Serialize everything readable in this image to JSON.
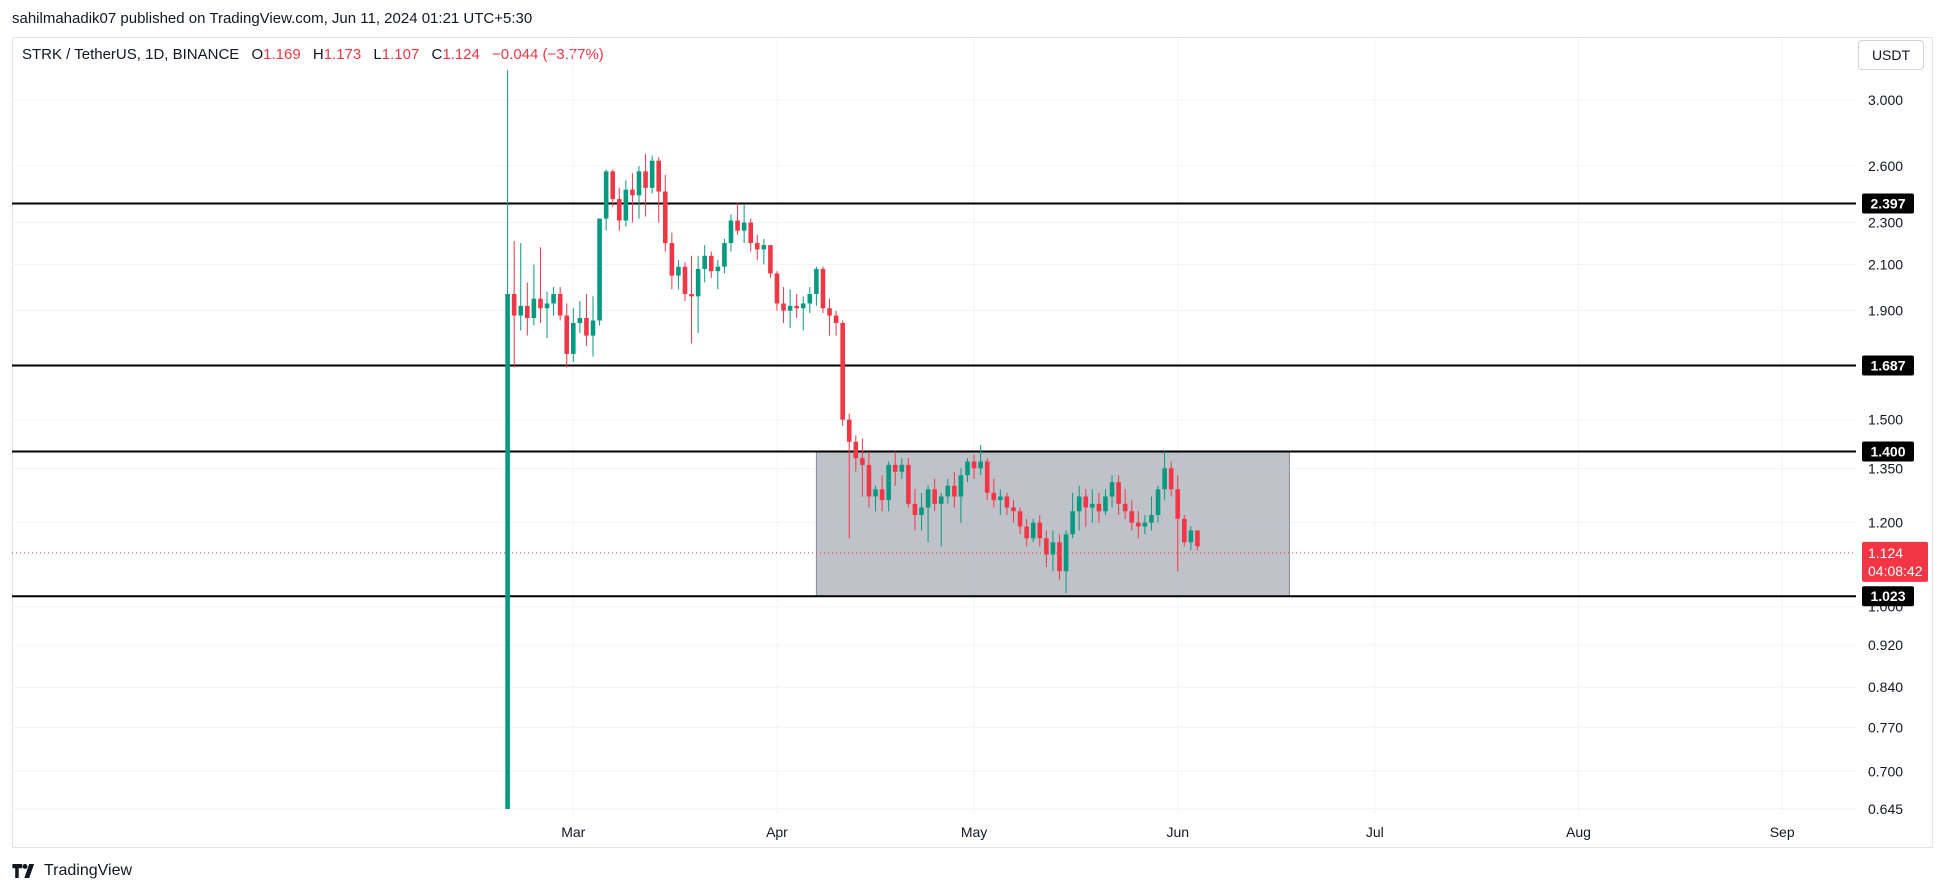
{
  "header": {
    "published": "sahilmahadik07 published on TradingView.com, Jun 11, 2024 01:21 UTC+5:30"
  },
  "legend": {
    "symbol": "STRK / TetherUS, 1D, BINANCE",
    "o_label": "O",
    "o_value": "1.169",
    "h_label": "H",
    "h_value": "1.173",
    "l_label": "L",
    "l_value": "1.107",
    "c_label": "C",
    "c_value": "1.124",
    "change": "−0.044 (−3.77%)"
  },
  "unit_button": "USDT",
  "footer": {
    "brand": "TradingView"
  },
  "colors": {
    "up": "#089981",
    "down": "#f23645",
    "zone": "#b2b5be",
    "grid": "#f0f3fa",
    "level": "#000000",
    "current": "#f23645"
  },
  "chart_data": {
    "type": "candlestick",
    "scale": "log",
    "ylim": [
      0.645,
      3.0
    ],
    "y_ticks": [
      "3.000",
      "2.600",
      "2.300",
      "2.100",
      "1.900",
      "1.500",
      "1.350",
      "1.200",
      "1.000",
      "0.920",
      "0.840",
      "0.770",
      "0.700",
      "0.645"
    ],
    "x_ticks": [
      "Mar",
      "Apr",
      "May",
      "Jun",
      "Jul",
      "Aug",
      "Sep"
    ],
    "first_date": "2024-02-20",
    "horizontal_levels": [
      {
        "value": 2.397,
        "label": "2.397"
      },
      {
        "value": 1.687,
        "label": "1.687"
      },
      {
        "value": 1.4,
        "label": "1.400"
      },
      {
        "value": 1.023,
        "label": "1.023"
      }
    ],
    "range_box": {
      "from": "2024-04-07",
      "to": "2024-06-18",
      "top": 1.4,
      "bottom": 1.023
    },
    "current_price": {
      "value": 1.124,
      "label": "1.124",
      "countdown": "04:08:42"
    },
    "candles": [
      {
        "o": 0.645,
        "h": 3.2,
        "l": 0.645,
        "c": 1.97
      },
      {
        "o": 1.97,
        "h": 2.21,
        "l": 1.68,
        "c": 1.88
      },
      {
        "o": 1.88,
        "h": 2.2,
        "l": 1.82,
        "c": 1.92
      },
      {
        "o": 1.92,
        "h": 2.02,
        "l": 1.8,
        "c": 1.87
      },
      {
        "o": 1.87,
        "h": 2.1,
        "l": 1.84,
        "c": 1.95
      },
      {
        "o": 1.95,
        "h": 2.18,
        "l": 1.85,
        "c": 1.91
      },
      {
        "o": 1.91,
        "h": 1.98,
        "l": 1.79,
        "c": 1.93
      },
      {
        "o": 1.93,
        "h": 2.0,
        "l": 1.88,
        "c": 1.97
      },
      {
        "o": 1.97,
        "h": 2.0,
        "l": 1.86,
        "c": 1.88
      },
      {
        "o": 1.88,
        "h": 1.93,
        "l": 1.68,
        "c": 1.73
      },
      {
        "o": 1.73,
        "h": 1.91,
        "l": 1.7,
        "c": 1.85
      },
      {
        "o": 1.85,
        "h": 1.94,
        "l": 1.81,
        "c": 1.87
      },
      {
        "o": 1.87,
        "h": 1.97,
        "l": 1.76,
        "c": 1.8
      },
      {
        "o": 1.8,
        "h": 1.96,
        "l": 1.72,
        "c": 1.86
      },
      {
        "o": 1.86,
        "h": 2.32,
        "l": 1.84,
        "c": 2.32
      },
      {
        "o": 2.32,
        "h": 2.58,
        "l": 2.26,
        "c": 2.57
      },
      {
        "o": 2.57,
        "h": 2.58,
        "l": 2.38,
        "c": 2.42
      },
      {
        "o": 2.42,
        "h": 2.48,
        "l": 2.26,
        "c": 2.31
      },
      {
        "o": 2.31,
        "h": 2.52,
        "l": 2.28,
        "c": 2.47
      },
      {
        "o": 2.47,
        "h": 2.56,
        "l": 2.3,
        "c": 2.44
      },
      {
        "o": 2.44,
        "h": 2.6,
        "l": 2.32,
        "c": 2.57
      },
      {
        "o": 2.57,
        "h": 2.67,
        "l": 2.33,
        "c": 2.48
      },
      {
        "o": 2.48,
        "h": 2.66,
        "l": 2.45,
        "c": 2.63
      },
      {
        "o": 2.63,
        "h": 2.65,
        "l": 2.3,
        "c": 2.46
      },
      {
        "o": 2.46,
        "h": 2.55,
        "l": 2.16,
        "c": 2.2
      },
      {
        "o": 2.2,
        "h": 2.25,
        "l": 1.99,
        "c": 2.05
      },
      {
        "o": 2.05,
        "h": 2.12,
        "l": 1.99,
        "c": 2.09
      },
      {
        "o": 2.09,
        "h": 2.11,
        "l": 1.94,
        "c": 1.97
      },
      {
        "o": 1.97,
        "h": 2.14,
        "l": 1.77,
        "c": 1.96
      },
      {
        "o": 1.96,
        "h": 2.14,
        "l": 1.81,
        "c": 2.08
      },
      {
        "o": 2.08,
        "h": 2.19,
        "l": 2.02,
        "c": 2.14
      },
      {
        "o": 2.14,
        "h": 2.16,
        "l": 2.04,
        "c": 2.07
      },
      {
        "o": 2.07,
        "h": 2.12,
        "l": 1.99,
        "c": 2.09
      },
      {
        "o": 2.09,
        "h": 2.22,
        "l": 2.06,
        "c": 2.2
      },
      {
        "o": 2.2,
        "h": 2.34,
        "l": 2.16,
        "c": 2.31
      },
      {
        "o": 2.31,
        "h": 2.4,
        "l": 2.24,
        "c": 2.26
      },
      {
        "o": 2.26,
        "h": 2.39,
        "l": 2.2,
        "c": 2.3
      },
      {
        "o": 2.3,
        "h": 2.32,
        "l": 2.16,
        "c": 2.2
      },
      {
        "o": 2.2,
        "h": 2.24,
        "l": 2.12,
        "c": 2.17
      },
      {
        "o": 2.17,
        "h": 2.22,
        "l": 2.1,
        "c": 2.19
      },
      {
        "o": 2.19,
        "h": 2.19,
        "l": 2.04,
        "c": 2.06
      },
      {
        "o": 2.06,
        "h": 2.07,
        "l": 1.9,
        "c": 1.93
      },
      {
        "o": 1.93,
        "h": 2.0,
        "l": 1.85,
        "c": 1.9
      },
      {
        "o": 1.9,
        "h": 1.99,
        "l": 1.83,
        "c": 1.92
      },
      {
        "o": 1.92,
        "h": 1.97,
        "l": 1.87,
        "c": 1.91
      },
      {
        "o": 1.91,
        "h": 1.96,
        "l": 1.82,
        "c": 1.93
      },
      {
        "o": 1.93,
        "h": 2.0,
        "l": 1.89,
        "c": 1.97
      },
      {
        "o": 1.97,
        "h": 2.09,
        "l": 1.92,
        "c": 2.08
      },
      {
        "o": 2.08,
        "h": 2.09,
        "l": 1.89,
        "c": 1.91
      },
      {
        "o": 1.91,
        "h": 1.95,
        "l": 1.8,
        "c": 1.88
      },
      {
        "o": 1.88,
        "h": 1.9,
        "l": 1.8,
        "c": 1.85
      },
      {
        "o": 1.85,
        "h": 1.86,
        "l": 1.48,
        "c": 1.5
      },
      {
        "o": 1.5,
        "h": 1.52,
        "l": 1.16,
        "c": 1.43
      },
      {
        "o": 1.43,
        "h": 1.45,
        "l": 1.34,
        "c": 1.38
      },
      {
        "o": 1.38,
        "h": 1.44,
        "l": 1.27,
        "c": 1.36
      },
      {
        "o": 1.36,
        "h": 1.4,
        "l": 1.24,
        "c": 1.27
      },
      {
        "o": 1.27,
        "h": 1.3,
        "l": 1.23,
        "c": 1.29
      },
      {
        "o": 1.29,
        "h": 1.33,
        "l": 1.23,
        "c": 1.26
      },
      {
        "o": 1.26,
        "h": 1.37,
        "l": 1.23,
        "c": 1.36
      },
      {
        "o": 1.36,
        "h": 1.4,
        "l": 1.3,
        "c": 1.34
      },
      {
        "o": 1.34,
        "h": 1.38,
        "l": 1.32,
        "c": 1.36
      },
      {
        "o": 1.36,
        "h": 1.38,
        "l": 1.24,
        "c": 1.25
      },
      {
        "o": 1.25,
        "h": 1.29,
        "l": 1.18,
        "c": 1.22
      },
      {
        "o": 1.22,
        "h": 1.28,
        "l": 1.18,
        "c": 1.24
      },
      {
        "o": 1.24,
        "h": 1.3,
        "l": 1.15,
        "c": 1.29
      },
      {
        "o": 1.29,
        "h": 1.32,
        "l": 1.23,
        "c": 1.25
      },
      {
        "o": 1.25,
        "h": 1.28,
        "l": 1.14,
        "c": 1.27
      },
      {
        "o": 1.27,
        "h": 1.32,
        "l": 1.25,
        "c": 1.3
      },
      {
        "o": 1.3,
        "h": 1.34,
        "l": 1.24,
        "c": 1.27
      },
      {
        "o": 1.27,
        "h": 1.35,
        "l": 1.2,
        "c": 1.33
      },
      {
        "o": 1.33,
        "h": 1.38,
        "l": 1.31,
        "c": 1.37
      },
      {
        "o": 1.37,
        "h": 1.39,
        "l": 1.32,
        "c": 1.35
      },
      {
        "o": 1.35,
        "h": 1.42,
        "l": 1.33,
        "c": 1.37
      },
      {
        "o": 1.37,
        "h": 1.38,
        "l": 1.26,
        "c": 1.28
      },
      {
        "o": 1.28,
        "h": 1.32,
        "l": 1.24,
        "c": 1.26
      },
      {
        "o": 1.26,
        "h": 1.29,
        "l": 1.22,
        "c": 1.27
      },
      {
        "o": 1.27,
        "h": 1.28,
        "l": 1.22,
        "c": 1.24
      },
      {
        "o": 1.24,
        "h": 1.26,
        "l": 1.2,
        "c": 1.23
      },
      {
        "o": 1.23,
        "h": 1.24,
        "l": 1.17,
        "c": 1.19
      },
      {
        "o": 1.19,
        "h": 1.21,
        "l": 1.14,
        "c": 1.16
      },
      {
        "o": 1.16,
        "h": 1.21,
        "l": 1.15,
        "c": 1.2
      },
      {
        "o": 1.2,
        "h": 1.22,
        "l": 1.14,
        "c": 1.16
      },
      {
        "o": 1.16,
        "h": 1.18,
        "l": 1.09,
        "c": 1.12
      },
      {
        "o": 1.12,
        "h": 1.18,
        "l": 1.08,
        "c": 1.15
      },
      {
        "o": 1.15,
        "h": 1.17,
        "l": 1.06,
        "c": 1.08
      },
      {
        "o": 1.08,
        "h": 1.18,
        "l": 1.03,
        "c": 1.17
      },
      {
        "o": 1.17,
        "h": 1.28,
        "l": 1.16,
        "c": 1.23
      },
      {
        "o": 1.23,
        "h": 1.3,
        "l": 1.18,
        "c": 1.27
      },
      {
        "o": 1.27,
        "h": 1.29,
        "l": 1.19,
        "c": 1.24
      },
      {
        "o": 1.24,
        "h": 1.29,
        "l": 1.2,
        "c": 1.25
      },
      {
        "o": 1.25,
        "h": 1.28,
        "l": 1.2,
        "c": 1.23
      },
      {
        "o": 1.23,
        "h": 1.29,
        "l": 1.22,
        "c": 1.27
      },
      {
        "o": 1.27,
        "h": 1.33,
        "l": 1.24,
        "c": 1.31
      },
      {
        "o": 1.31,
        "h": 1.33,
        "l": 1.22,
        "c": 1.25
      },
      {
        "o": 1.25,
        "h": 1.29,
        "l": 1.21,
        "c": 1.23
      },
      {
        "o": 1.23,
        "h": 1.26,
        "l": 1.18,
        "c": 1.2
      },
      {
        "o": 1.2,
        "h": 1.23,
        "l": 1.16,
        "c": 1.19
      },
      {
        "o": 1.19,
        "h": 1.22,
        "l": 1.17,
        "c": 1.2
      },
      {
        "o": 1.2,
        "h": 1.27,
        "l": 1.18,
        "c": 1.22
      },
      {
        "o": 1.22,
        "h": 1.3,
        "l": 1.2,
        "c": 1.29
      },
      {
        "o": 1.29,
        "h": 1.4,
        "l": 1.26,
        "c": 1.35
      },
      {
        "o": 1.35,
        "h": 1.37,
        "l": 1.27,
        "c": 1.29
      },
      {
        "o": 1.29,
        "h": 1.33,
        "l": 1.08,
        "c": 1.21
      },
      {
        "o": 1.21,
        "h": 1.22,
        "l": 1.14,
        "c": 1.15
      },
      {
        "o": 1.15,
        "h": 1.19,
        "l": 1.13,
        "c": 1.18
      },
      {
        "o": 1.18,
        "h": 1.18,
        "l": 1.13,
        "c": 1.14
      }
    ]
  }
}
